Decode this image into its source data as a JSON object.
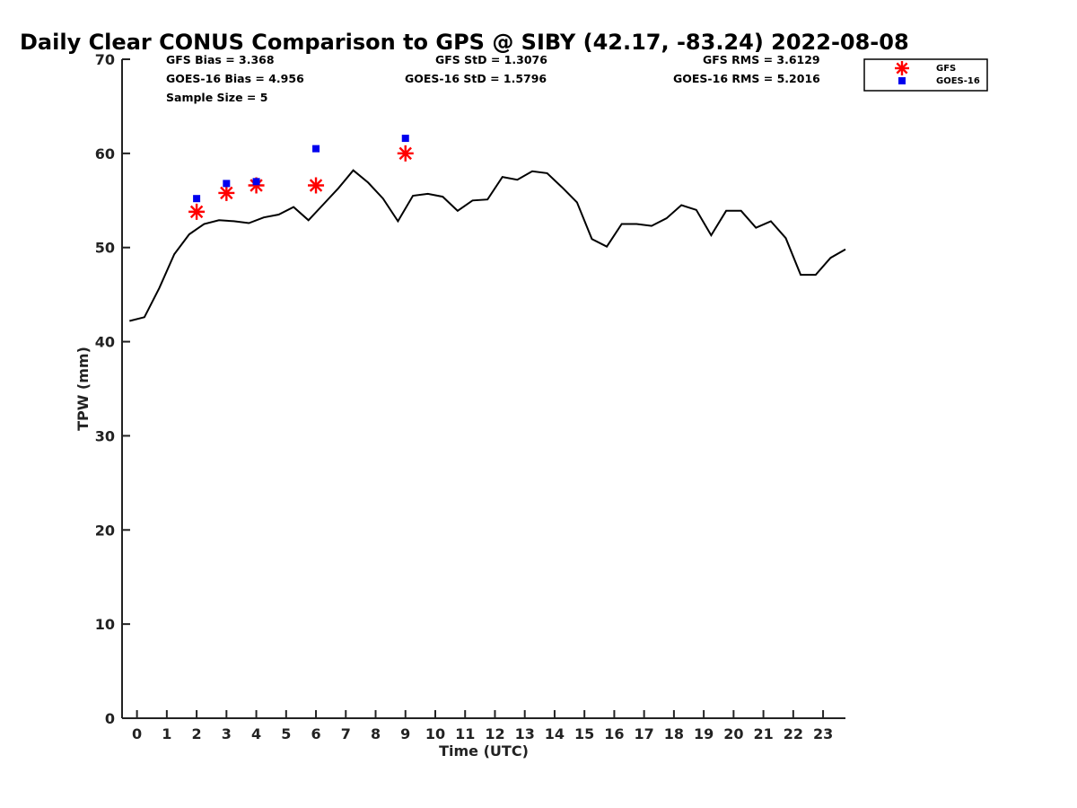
{
  "chart_data": {
    "type": "line",
    "title": "Daily Clear CONUS Comparison to GPS @ SIBY (42.17, -83.24) 2022-08-08",
    "xlabel": "Time (UTC)",
    "ylabel": "TPW (mm)",
    "xlim": [
      -0.5,
      23.75
    ],
    "ylim": [
      0,
      70
    ],
    "x_ticks": [
      0,
      1,
      2,
      3,
      4,
      5,
      6,
      7,
      8,
      9,
      10,
      11,
      12,
      13,
      14,
      15,
      16,
      17,
      18,
      19,
      20,
      21,
      22,
      23
    ],
    "x_tick_labels": [
      "0",
      "1",
      "2",
      "3",
      "4",
      "5",
      "6",
      "7",
      "8",
      "9",
      "10",
      "11",
      "12",
      "13",
      "14",
      "15",
      "16",
      "17",
      "18",
      "19",
      "20",
      "21",
      "22",
      "23"
    ],
    "y_ticks": [
      0,
      10,
      20,
      30,
      40,
      50,
      60,
      70
    ],
    "y_tick_labels": [
      "0",
      "10",
      "20",
      "30",
      "40",
      "50",
      "60",
      "70"
    ],
    "grid": false,
    "legend_position": "top-right, outside plot",
    "stats": {
      "gfs_bias": "GFS Bias = 3.368",
      "goes_bias": "GOES-16 Bias = 4.956",
      "sample_size": "Sample Size = 5",
      "gfs_std": "GFS StD = 1.3076",
      "goes_std": "GOES-16 StD = 1.5796",
      "gfs_rms": "GFS RMS = 3.6129",
      "goes_rms": "GOES-16 RMS = 5.2016"
    },
    "series": [
      {
        "kind": "line",
        "color": "#000000",
        "x": [
          -0.25,
          0.25,
          0.75,
          1.25,
          1.75,
          2.25,
          2.75,
          3.25,
          3.75,
          4.25,
          4.75,
          5.25,
          5.75,
          6.25,
          6.75,
          7.25,
          7.75,
          8.25,
          8.75,
          9.25,
          9.75,
          10.25,
          10.75,
          11.25,
          11.75,
          12.25,
          12.75,
          13.25,
          13.75,
          14.25,
          14.75,
          15.25,
          15.75,
          16.25,
          16.75,
          17.25,
          17.75,
          18.25,
          18.75,
          19.25,
          19.75,
          20.25,
          20.75,
          21.25,
          21.75,
          22.25,
          22.75,
          23.25,
          23.75
        ],
        "values": [
          42.2,
          42.6,
          45.7,
          49.3,
          51.4,
          52.5,
          52.9,
          52.8,
          52.6,
          53.2,
          53.5,
          54.3,
          52.9,
          54.6,
          56.3,
          58.2,
          56.9,
          55.2,
          52.8,
          55.5,
          55.7,
          55.4,
          53.9,
          55.0,
          55.1,
          57.5,
          57.2,
          58.1,
          57.9,
          56.4,
          54.8,
          50.9,
          50.1,
          52.5,
          52.5,
          52.3,
          53.1,
          54.5,
          54.0,
          51.3,
          53.9,
          53.9,
          52.1,
          52.8,
          51.0,
          47.1,
          47.1,
          48.9,
          49.8
        ]
      },
      {
        "name": "GFS",
        "kind": "scatter",
        "marker": "asterisk",
        "color": "#ff0000",
        "x": [
          2,
          3,
          4,
          6,
          9
        ],
        "values": [
          53.8,
          55.8,
          56.6,
          56.6,
          60.0
        ]
      },
      {
        "name": "GOES-16",
        "kind": "scatter",
        "marker": "square",
        "color": "#0000ee",
        "x": [
          2,
          3,
          4,
          6,
          9
        ],
        "values": [
          55.2,
          56.8,
          57.0,
          60.5,
          61.6
        ]
      }
    ]
  }
}
